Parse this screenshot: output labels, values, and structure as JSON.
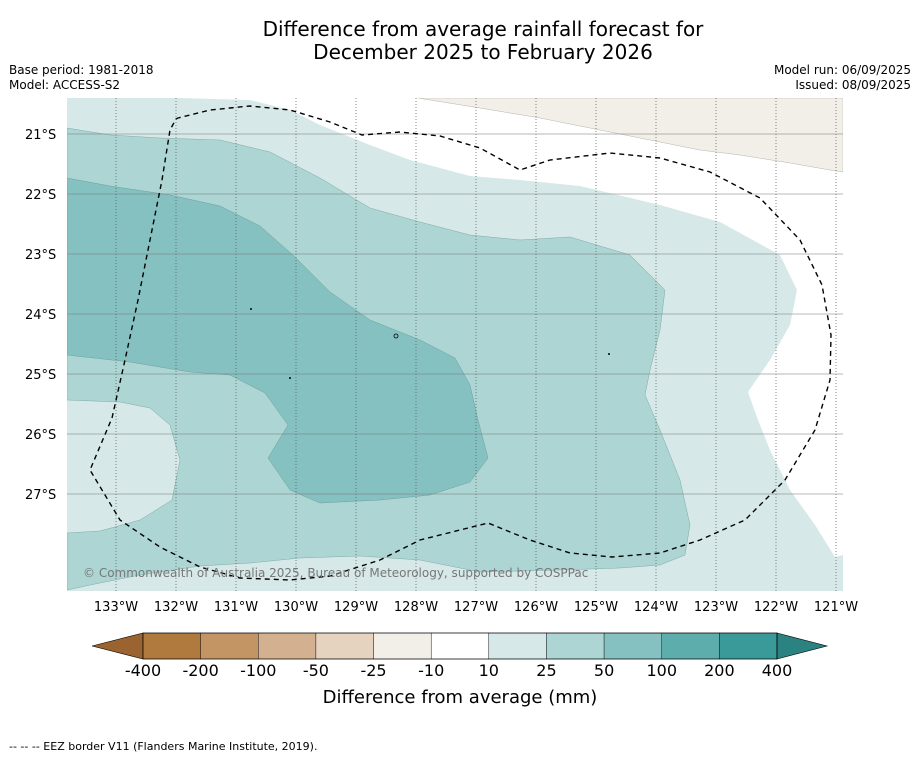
{
  "title_line1": "Difference from average rainfall forecast for",
  "title_line2": "December 2025 to February 2026",
  "base_period": "Base period: 1981-2018",
  "model": "Model: ACCESS-S2",
  "model_run": "Model run: 06/09/2025",
  "issued": "Issued: 08/09/2025",
  "copyright": "© Commonwealth of Australia 2025, Bureau of Meteorology, supported by COSPPac",
  "lat_labels": [
    "21°S",
    "22°S",
    "23°S",
    "24°S",
    "25°S",
    "26°S",
    "27°S"
  ],
  "lon_labels": [
    "133°W",
    "132°W",
    "131°W",
    "130°W",
    "129°W",
    "128°W",
    "127°W",
    "126°W",
    "125°W",
    "124°W",
    "123°W",
    "122°W",
    "121°W"
  ],
  "colorbar_labels": [
    "-400",
    "-200",
    "-100",
    "-50",
    "-25",
    "-10",
    "10",
    "25",
    "50",
    "100",
    "200",
    "400"
  ],
  "colorbar_colors": [
    "#b07a3e",
    "#c49564",
    "#d3b190",
    "#e5d2bf",
    "#f2efe9",
    "#ffffff",
    "#d6e9e8",
    "#acd5d4",
    "#86c1c1",
    "#5eadad",
    "#3a9a99"
  ],
  "colorbar_under": "#9a6330",
  "colorbar_over": "#2a8281",
  "colorbar_title": "Difference from average (mm)",
  "eez_footer": "--  --  -- EEZ border V11 (Flanders Marine Institute, 2019)."
}
